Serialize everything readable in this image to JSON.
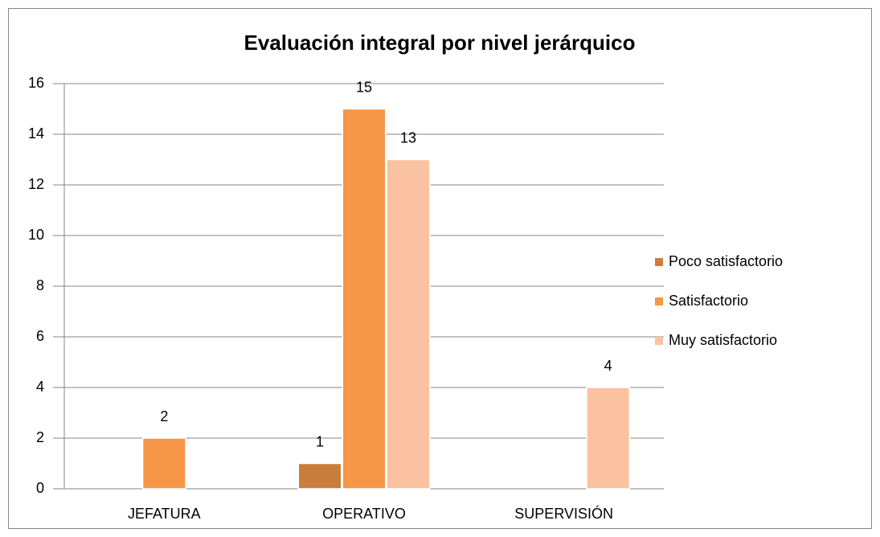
{
  "chart_data": {
    "type": "bar",
    "title": "Evaluación integral por nivel jerárquico",
    "categories": [
      "JEFATURA",
      "OPERATIVO",
      "SUPERVISIÓN"
    ],
    "series": [
      {
        "name": "Poco satisfactorio",
        "color": "#cb7d3b",
        "values": [
          null,
          1,
          null
        ]
      },
      {
        "name": "Satisfactorio",
        "color": "#f79646",
        "values": [
          2,
          15,
          null
        ]
      },
      {
        "name": "Muy satisfactorio",
        "color": "#fac2a1",
        "values": [
          null,
          13,
          4
        ]
      }
    ],
    "ylim": [
      0,
      16
    ],
    "yticks": [
      0,
      2,
      4,
      6,
      8,
      10,
      12,
      14,
      16
    ],
    "grid": true,
    "legend": "right"
  }
}
